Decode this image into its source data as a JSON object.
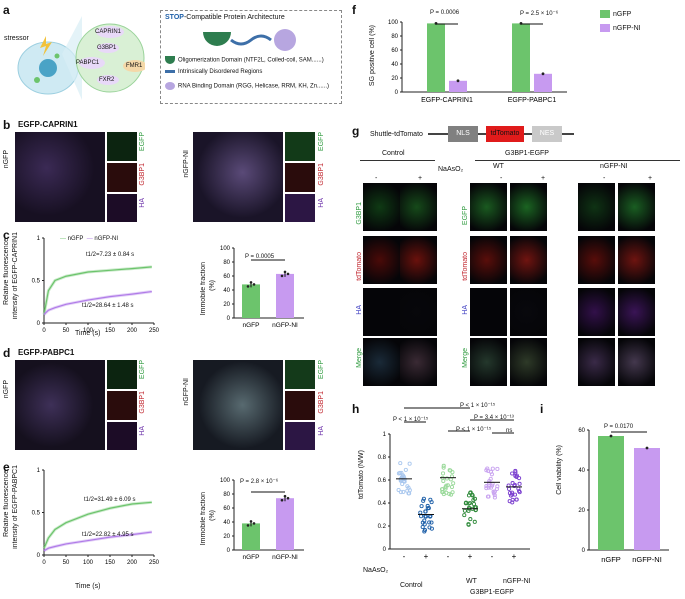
{
  "panel_labels": {
    "a": "a",
    "b": "b",
    "c": "c",
    "d": "d",
    "e": "e",
    "f": "f",
    "g": "g",
    "h": "h",
    "i": "i"
  },
  "panel_a": {
    "stressor": "stressor",
    "proteins": [
      "CAPRIN1",
      "G3BP1",
      "PABPC1",
      "FXR2",
      "FMR1"
    ],
    "stop_title_bold": "STOP",
    "stop_title_rest": "-Compatible Protein Architecture",
    "legend": [
      {
        "label": "Oligomerization Domain (NTF2L, Coiled-coil, SAM......)",
        "color": "#2e7d4f"
      },
      {
        "label": "Intrinsically Disordered Regions",
        "color": "#3d6fa8"
      },
      {
        "label": "RNA Binding Domain (RGG, Helicase, RRM, KH, Zn......)",
        "color": "#b7a6e0"
      }
    ]
  },
  "panel_b": {
    "title": "EGFP-CAPRIN1",
    "left_label": "nGFP",
    "right_label": "nGFP-NI",
    "ch": [
      "EGFP",
      "G3BP1",
      "HA"
    ]
  },
  "panel_d": {
    "title": "EGFP-PABPC1",
    "left_label": "nGFP",
    "right_label": "nGFP-NI",
    "ch": [
      "EGFP",
      "G3BP1",
      "HA"
    ]
  },
  "panel_c": {
    "ylabel1": "Relative fluorescence",
    "ylabel2": "intensity of EGFP-CAPRIN1",
    "xlabel": "Time (s)",
    "legend": [
      "nGFP",
      "nGFP-NI"
    ],
    "ann1": "t1/2=7.23 ± 0.84 s",
    "ann2": "t1/2=28.64 ± 1.48 s",
    "bar_ylabel1": "Immobile fraction",
    "bar_ylabel2": "(%)",
    "bar_p": "P = 0.0005",
    "bar_categories": [
      "nGFP",
      "nGFP-NI"
    ]
  },
  "panel_e": {
    "ylabel1": "Relative fluorescence",
    "ylabel2": "intensity of EGFP-PABPC1",
    "xlabel": "Time (s)",
    "ann1": "t1/2=31.49 ± 6.09 s",
    "ann2": "t1/2=22.82 ± 4.95 s",
    "bar_ylabel1": "Immobile fraction",
    "bar_ylabel2": "(%)",
    "bar_p": "P = 2.8 × 10⁻⁶",
    "bar_categories": [
      "nGFP",
      "nGFP-NI"
    ]
  },
  "panel_f": {
    "ylabel": "SG positive cell (%)",
    "p1": "P = 0.0006",
    "p2": "P = 2.5 × 10⁻⁶",
    "legend": [
      "nGFP",
      "nGFP-NI"
    ],
    "categories": [
      "EGFP-CAPRIN1",
      "EGFP-PABPC1"
    ]
  },
  "panel_g": {
    "construct": "Shuttle-tdTomato",
    "nls": "NLS",
    "td": "tdTomato",
    "nes": "NES",
    "control": "Control",
    "g3bp1": "G3BP1-EGFP",
    "wt": "WT",
    "ngfpni": "nGFP-NI",
    "naaso2": "NaAsO₂",
    "minus": "-",
    "plus": "+",
    "rows_left": [
      "G3BP1",
      "tdTomato",
      "HA",
      "Merge"
    ],
    "rows_right": [
      "EGFP",
      "tdTomato",
      "HA",
      "Merge"
    ]
  },
  "panel_h": {
    "ylabel": "tdTomato (N/W)",
    "naaso2": "NaAsO₂",
    "control": "Control",
    "wt": "WT",
    "ngfpni": "nGFP-NI",
    "g3bp1": "G3BP1-EGFP",
    "p_top": "P < 1 × 10⁻¹⁵",
    "p_a": "P < 1 × 10⁻¹⁵",
    "p_b": "P < 1 × 10⁻¹⁵",
    "p_c": "P = 3.4 × 10⁻¹³",
    "p_ns": "ns",
    "signs": [
      "-",
      "+",
      "-",
      "+",
      "-",
      "+"
    ]
  },
  "panel_i": {
    "ylabel": "Cell viability (%)",
    "p": "P = 0.0170",
    "categories": [
      "nGFP",
      "nGFP-NI"
    ]
  },
  "chart_data": [
    {
      "type": "line",
      "panel": "c",
      "xlabel": "Time (s)",
      "xlim": [
        0,
        250
      ],
      "ylim": [
        0,
        1.0
      ],
      "series": [
        {
          "name": "nGFP",
          "color": "#6cc46c",
          "x": [
            0,
            10,
            25,
            50,
            100,
            150,
            200,
            245
          ],
          "y": [
            0.1,
            0.38,
            0.5,
            0.55,
            0.6,
            0.62,
            0.64,
            0.66
          ]
        },
        {
          "name": "nGFP-NI",
          "color": "#b07be8",
          "x": [
            0,
            10,
            25,
            50,
            100,
            150,
            200,
            245
          ],
          "y": [
            0.1,
            0.15,
            0.18,
            0.22,
            0.27,
            0.31,
            0.34,
            0.37
          ]
        }
      ]
    },
    {
      "type": "bar",
      "panel": "c-bar",
      "categories": [
        "nGFP",
        "nGFP-NI"
      ],
      "values": [
        48,
        63
      ],
      "ylim": [
        0,
        100
      ],
      "yticks": [
        0,
        20,
        40,
        60,
        80,
        100
      ]
    },
    {
      "type": "line",
      "panel": "e",
      "xlabel": "Time (s)",
      "xlim": [
        0,
        250
      ],
      "ylim": [
        0,
        1.0
      ],
      "series": [
        {
          "name": "nGFP",
          "color": "#6cc46c",
          "x": [
            0,
            10,
            25,
            50,
            100,
            150,
            200,
            245
          ],
          "y": [
            0.08,
            0.2,
            0.3,
            0.38,
            0.48,
            0.55,
            0.6,
            0.62
          ]
        },
        {
          "name": "nGFP-NI",
          "color": "#b07be8",
          "x": [
            0,
            10,
            25,
            50,
            100,
            150,
            200,
            245
          ],
          "y": [
            0.05,
            0.08,
            0.1,
            0.13,
            0.17,
            0.21,
            0.24,
            0.27
          ]
        }
      ]
    },
    {
      "type": "bar",
      "panel": "e-bar",
      "categories": [
        "nGFP",
        "nGFP-NI"
      ],
      "values": [
        38,
        74
      ],
      "ylim": [
        0,
        100
      ],
      "yticks": [
        0,
        20,
        40,
        60,
        80,
        100
      ]
    },
    {
      "type": "bar",
      "panel": "f",
      "categories": [
        "EGFP-CAPRIN1",
        "EGFP-PABPC1"
      ],
      "series": [
        {
          "name": "nGFP",
          "values": [
            98,
            98
          ]
        },
        {
          "name": "nGFP-NI",
          "values": [
            16,
            26
          ]
        }
      ],
      "ylim": [
        0,
        100
      ],
      "yticks": [
        0,
        20,
        40,
        60,
        80,
        100
      ]
    },
    {
      "type": "scatter",
      "panel": "h",
      "ylim": [
        0,
        1.0
      ],
      "yticks": [
        0,
        0.2,
        0.4,
        0.6,
        0.8,
        1.0
      ],
      "groups": [
        {
          "mean": 0.61,
          "color": "#a9c7ee"
        },
        {
          "mean": 0.3,
          "color": "#1d5fa8"
        },
        {
          "mean": 0.62,
          "color": "#9ad99a"
        },
        {
          "mean": 0.35,
          "color": "#2f8a3a"
        },
        {
          "mean": 0.58,
          "color": "#c9a3f0"
        },
        {
          "mean": 0.54,
          "color": "#7b3fcf"
        }
      ]
    },
    {
      "type": "bar",
      "panel": "i",
      "categories": [
        "nGFP",
        "nGFP-NI"
      ],
      "values": [
        57,
        51
      ],
      "ylim": [
        0,
        60
      ],
      "yticks": [
        0,
        20,
        40,
        60
      ]
    }
  ]
}
